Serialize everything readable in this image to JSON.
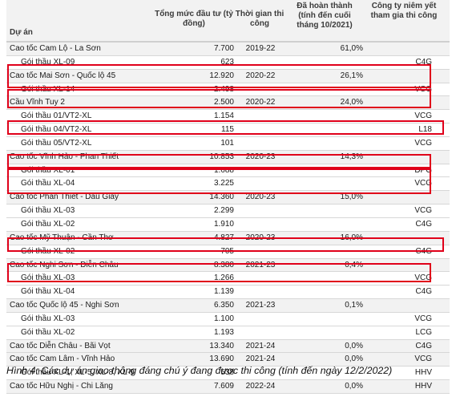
{
  "header": {
    "name": "Dự án",
    "total": "Tổng mức đầu tư (tỷ đồng)",
    "time": "Thời gian thi công",
    "done": "Đã hoàn thành (tính đến cuối tháng 10/2021)",
    "company": "Công ty niêm yết tham gia thi công"
  },
  "rows": [
    {
      "type": "proj",
      "name": "Cao tốc Cam Lộ - La Sơn",
      "total": "7.700",
      "time": "2019-22",
      "done": "61,0%",
      "company": ""
    },
    {
      "type": "pkg",
      "name": "Gói thầu XL-09",
      "total": "623",
      "time": "",
      "done": "",
      "company": "C4G"
    },
    {
      "type": "proj",
      "name": "Cao tốc Mai Sơn - Quốc lộ 45",
      "total": "12.920",
      "time": "2020-22",
      "done": "26,1%",
      "company": ""
    },
    {
      "type": "pkg",
      "name": "Gói thầu XL-14",
      "total": "2.498",
      "time": "",
      "done": "",
      "company": "VCG"
    },
    {
      "type": "proj",
      "name": "Cầu Vĩnh Tuy 2",
      "total": "2.500",
      "time": "2020-22",
      "done": "24,0%",
      "company": ""
    },
    {
      "type": "pkg",
      "name": "Gói thầu 01/VT2-XL",
      "total": "1.154",
      "time": "",
      "done": "",
      "company": "VCG"
    },
    {
      "type": "pkg",
      "name": "Gói thầu 04/VT2-XL",
      "total": "115",
      "time": "",
      "done": "",
      "company": "L18"
    },
    {
      "type": "pkg",
      "name": "Gói thầu 05/VT2-XL",
      "total": "101",
      "time": "",
      "done": "",
      "company": "VCG"
    },
    {
      "type": "proj",
      "name": "Cao tốc Vĩnh Hảo - Phan Thiết",
      "total": "10.853",
      "time": "2020-23",
      "done": "14,3%",
      "company": ""
    },
    {
      "type": "pkg",
      "name": "Gói thầu XL-01",
      "total": "1.688",
      "time": "",
      "done": "",
      "company": "DPG"
    },
    {
      "type": "pkg",
      "name": "Gói thầu XL-04",
      "total": "3.225",
      "time": "",
      "done": "",
      "company": "VCG"
    },
    {
      "type": "proj",
      "name": "Cao tốc Phan Thiết - Dầu Giây",
      "total": "14.360",
      "time": "2020-23",
      "done": "15,0%",
      "company": ""
    },
    {
      "type": "pkg",
      "name": "Gói thầu XL-03",
      "total": "2.299",
      "time": "",
      "done": "",
      "company": "VCG"
    },
    {
      "type": "pkg",
      "name": "Gói thầu XL-02",
      "total": "1.910",
      "time": "",
      "done": "",
      "company": "C4G"
    },
    {
      "type": "proj",
      "name": "Cao tốc Mỹ Thuận - Cần Thơ",
      "total": "4.827",
      "time": "2020-23",
      "done": "16,0%",
      "company": ""
    },
    {
      "type": "pkg",
      "name": "Gói thầu XL-02",
      "total": "705",
      "time": "",
      "done": "",
      "company": "C4G"
    },
    {
      "type": "proj",
      "name": "Cao tốc Nghi Sơn - Diễn Châu",
      "total": "8.380",
      "time": "2021-23",
      "done": "0,4%",
      "company": ""
    },
    {
      "type": "pkg",
      "name": "Gói thầu XL-03",
      "total": "1.266",
      "time": "",
      "done": "",
      "company": "VCG"
    },
    {
      "type": "pkg",
      "name": "Gói thầu XL-04",
      "total": "1.139",
      "time": "",
      "done": "",
      "company": "C4G"
    },
    {
      "type": "proj",
      "name": "Cao tốc Quốc lộ 45 - Nghi Sơn",
      "total": "6.350",
      "time": "2021-23",
      "done": "0,1%",
      "company": ""
    },
    {
      "type": "pkg",
      "name": "Gói thầu XL-03",
      "total": "1.100",
      "time": "",
      "done": "",
      "company": "VCG"
    },
    {
      "type": "pkg",
      "name": "Gói thầu XL-02",
      "total": "1.193",
      "time": "",
      "done": "",
      "company": "LCG"
    },
    {
      "type": "proj",
      "name": "Cao tốc Diễn Châu - Bãi Vọt",
      "total": "13.340",
      "time": "2021-24",
      "done": "0,0%",
      "company": "C4G"
    },
    {
      "type": "proj",
      "name": "Cao tốc Cam Lâm - Vĩnh Hảo",
      "total": "13.690",
      "time": "2021-24",
      "done": "0,0%",
      "company": "VCG"
    },
    {
      "type": "pkg",
      "name": "Gói thầu XL-1, XL-5, XL-8, XL-9",
      "total": "538",
      "time": "",
      "done": "",
      "company": "HHV"
    },
    {
      "type": "proj",
      "name": "Cao tốc Hữu Nghị - Chi Lăng",
      "total": "7.609",
      "time": "2022-24",
      "done": "0,0%",
      "company": "HHV"
    }
  ],
  "caption": "Hình 4: Các dự án giao thông đáng chú ý đang được thi công (tính đến ngày 12/2/2022)",
  "highlight_color": "#e0001a"
}
